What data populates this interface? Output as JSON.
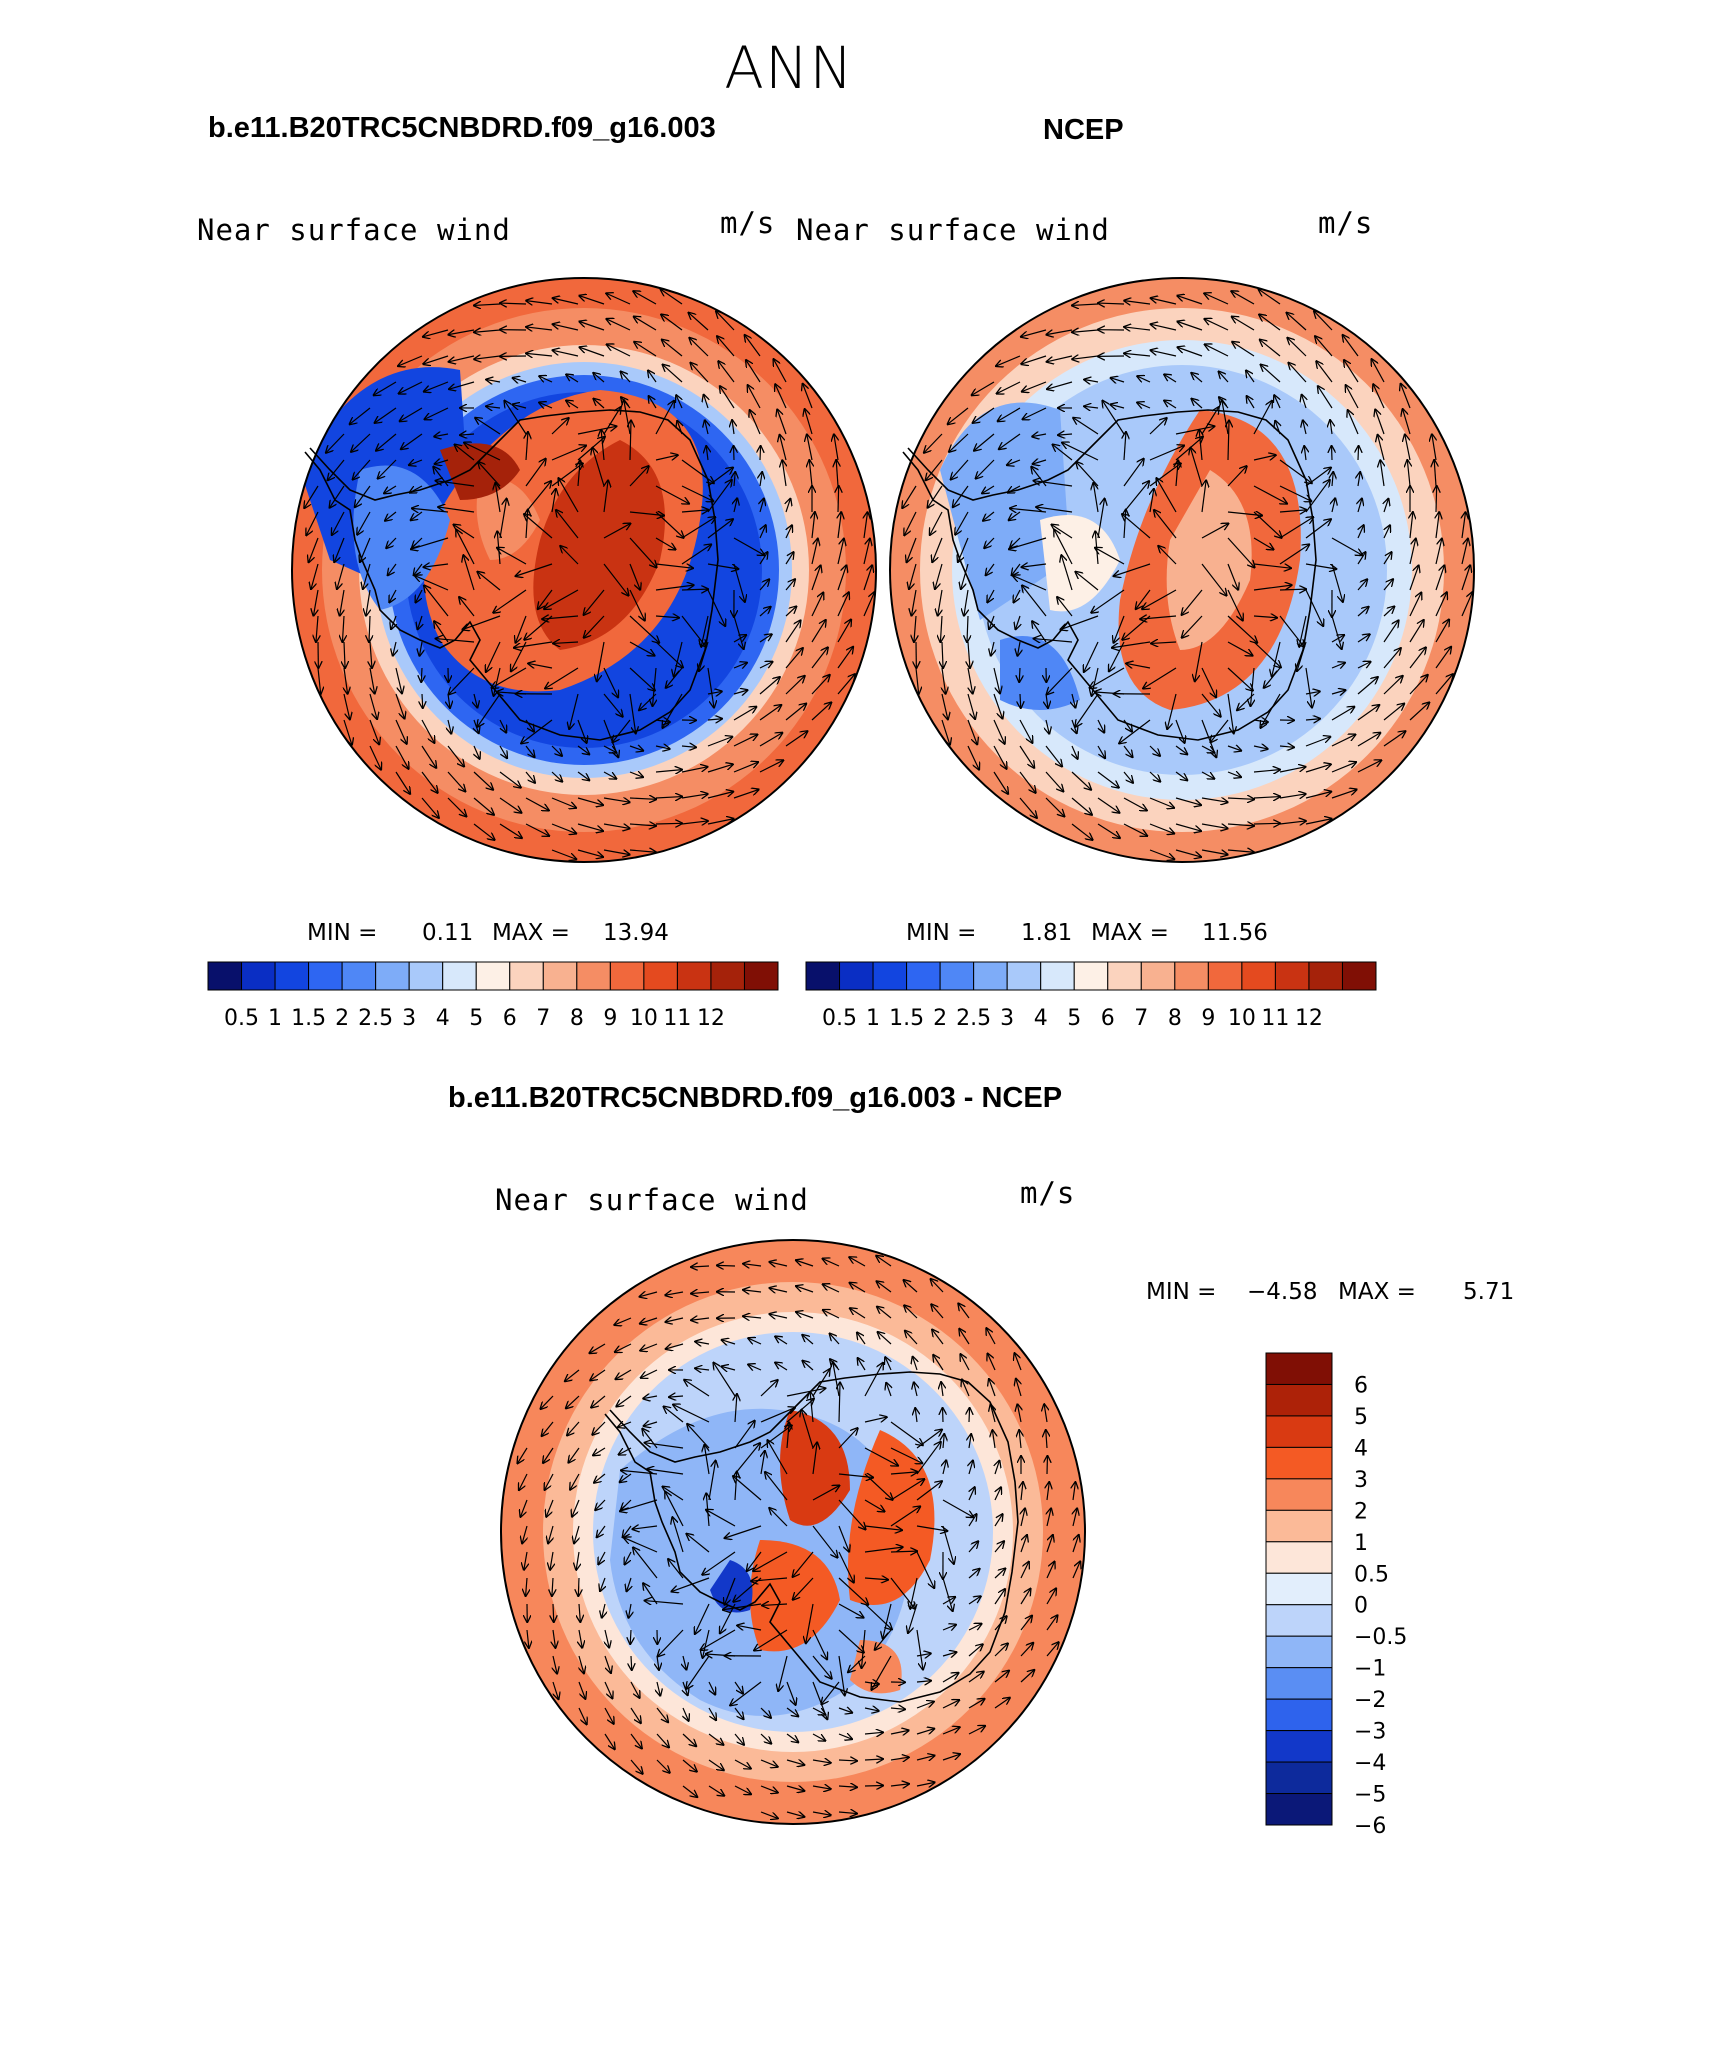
{
  "figure": {
    "title": "ANN",
    "panel_titles": {
      "left": "b.e11.B20TRC5CNBDRD.f09_g16.003",
      "right": "NCEP",
      "bottom": "b.e11.B20TRC5CNBDRD.f09_g16.003 - NCEP"
    },
    "variable_label": "Near surface wind",
    "units": "m/s"
  },
  "panels": [
    {
      "id": "model",
      "min_label": "MIN =",
      "min_value": "0.11",
      "max_label": "MAX =",
      "max_value": "13.94",
      "field": "model"
    },
    {
      "id": "obs",
      "min_label": "MIN =",
      "min_value": "1.81",
      "max_label": "MAX =",
      "max_value": "11.56",
      "field": "obs"
    },
    {
      "id": "diff",
      "min_label": "MIN =",
      "min_value": "−4.58",
      "max_label": "MAX =",
      "max_value": "5.71",
      "field": "diff"
    }
  ],
  "colorbar_abs": {
    "colors": [
      "#08106b",
      "#0a2ec4",
      "#1245e0",
      "#2e66f2",
      "#4f87f6",
      "#7eacf8",
      "#a9c9fa",
      "#d7e8fb",
      "#fdf0e6",
      "#fbd3be",
      "#f8b190",
      "#f58d64",
      "#f1683c",
      "#e44a1f",
      "#c93312",
      "#a5220a",
      "#800f05"
    ],
    "labels": [
      "0.5",
      "1",
      "1.5",
      "2",
      "2.5",
      "3",
      "4",
      "5",
      "6",
      "7",
      "8",
      "9",
      "10",
      "11",
      "12"
    ]
  },
  "colorbar_diff": {
    "colors": [
      "#800f05",
      "#ad2208",
      "#d93a12",
      "#f45a24",
      "#f7875b",
      "#fbba98",
      "#fde6d9",
      "#e2eefc",
      "#bdd4fa",
      "#8fb6f7",
      "#5a8ef3",
      "#2e63ed",
      "#1238c9",
      "#0d2a9c",
      "#0b1878"
    ],
    "labels": [
      "6",
      "5",
      "4",
      "3",
      "2",
      "1",
      "0.5",
      "0",
      "−0.5",
      "−1",
      "−2",
      "−3",
      "−4",
      "−5",
      "−6"
    ]
  }
}
